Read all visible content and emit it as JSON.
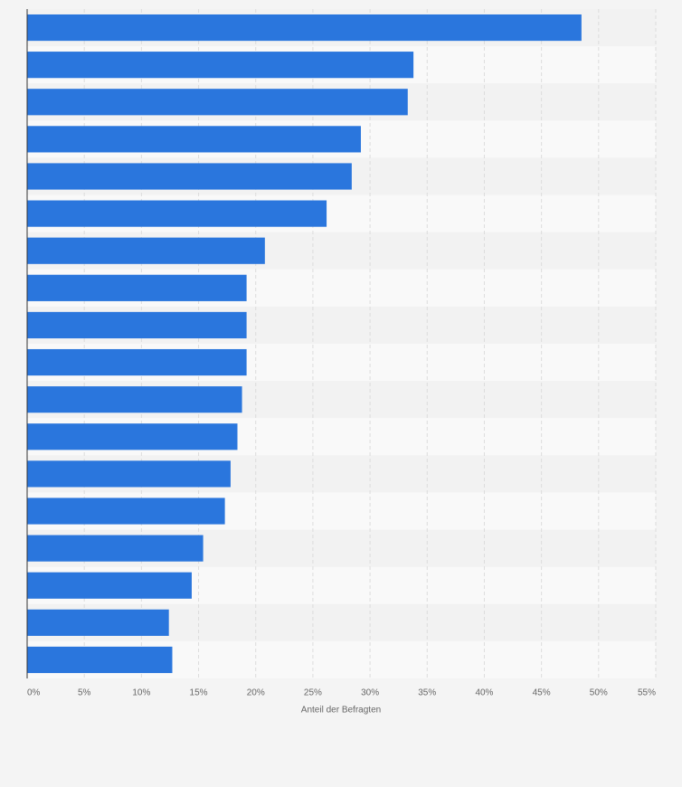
{
  "chart_data": {
    "type": "bar",
    "orientation": "horizontal",
    "categories": [
      null,
      null,
      null,
      null,
      null,
      null,
      null,
      null,
      null,
      null,
      null,
      null,
      null,
      null,
      null,
      null,
      null,
      null
    ],
    "values": [
      48.5,
      33.8,
      33.3,
      29.2,
      28.4,
      26.2,
      20.8,
      19.2,
      19.2,
      19.2,
      18.8,
      18.4,
      17.8,
      17.3,
      15.4,
      14.4,
      12.4,
      12.7
    ],
    "color": "#2a76dd",
    "xlabel": "Anteil der Befragten",
    "xlim": [
      0,
      55
    ],
    "xticks": [
      {
        "value": 0,
        "label": "0%"
      },
      {
        "value": 5,
        "label": "5%"
      },
      {
        "value": 10,
        "label": "10%"
      },
      {
        "value": 15,
        "label": "15%"
      },
      {
        "value": 20,
        "label": "20%"
      },
      {
        "value": 25,
        "label": "25%"
      },
      {
        "value": 30,
        "label": "30%"
      },
      {
        "value": 35,
        "label": "35%"
      },
      {
        "value": 40,
        "label": "40%"
      },
      {
        "value": 45,
        "label": "45%"
      },
      {
        "value": 50,
        "label": "50%"
      },
      {
        "value": 55,
        "label": "55%"
      }
    ],
    "grid": true
  }
}
